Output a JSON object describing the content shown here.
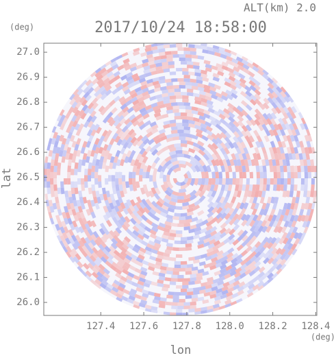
{
  "chart_data": {
    "type": "ppi",
    "annotation": "ALT(km) 2.0",
    "title": "2017/10/24 18:58:00",
    "xlabel": "lon",
    "xunit": "(deg)",
    "ylabel": "lat",
    "yunit": "(deg)",
    "xlim": [
      127.135,
      128.405
    ],
    "ylim": [
      25.948,
      27.036
    ],
    "xticks": [
      {
        "value": 127.4,
        "label": "127.4"
      },
      {
        "value": 127.6,
        "label": "127.6"
      },
      {
        "value": 127.8,
        "label": "127.8"
      },
      {
        "value": 128.0,
        "label": "128.0"
      },
      {
        "value": 128.2,
        "label": "128.2"
      },
      {
        "value": 128.4,
        "label": "128.4"
      }
    ],
    "yticks": [
      {
        "value": 26.0,
        "label": "26.0"
      },
      {
        "value": 26.1,
        "label": "26.1"
      },
      {
        "value": 26.2,
        "label": "26.2"
      },
      {
        "value": 26.3,
        "label": "26.3"
      },
      {
        "value": 26.4,
        "label": "26.4"
      },
      {
        "value": 26.5,
        "label": "26.5"
      },
      {
        "value": 26.6,
        "label": "26.6"
      },
      {
        "value": 26.7,
        "label": "26.7"
      },
      {
        "value": 26.8,
        "label": "26.8"
      },
      {
        "value": 26.9,
        "label": "26.9"
      },
      {
        "value": 27.0,
        "label": "27.0"
      }
    ]
  }
}
